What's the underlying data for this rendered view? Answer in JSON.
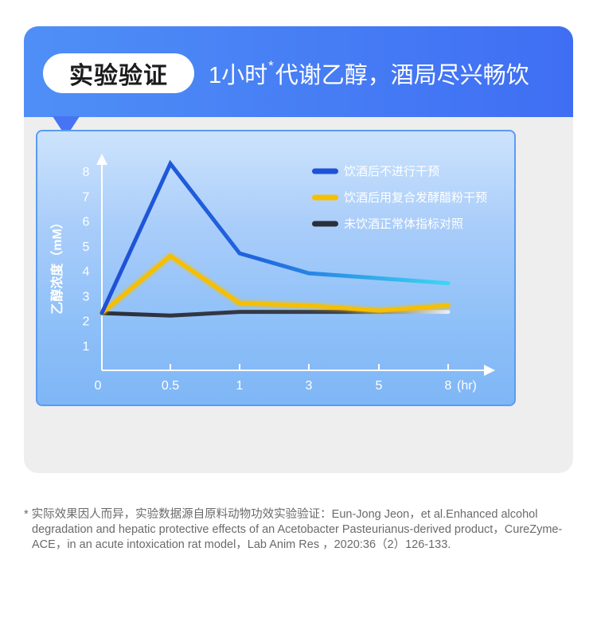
{
  "header": {
    "badge": "实验验证",
    "headline_lead": "1小时",
    "headline_mark": "*",
    "headline_rest": "代谢乙醇，酒局尽兴畅饮"
  },
  "colors": {
    "banner": "#4a7ff4",
    "series_1": "#1e52d8",
    "series_1_end": "#3bd1f0",
    "series_2": "#f6bf00",
    "series_3": "#2b2f3a"
  },
  "chart_data": {
    "type": "line",
    "title": "",
    "xlabel": "",
    "ylabel": "乙醇浓度（mM）",
    "x": [
      "0",
      "0.5",
      "1",
      "3",
      "5",
      "8"
    ],
    "x_unit": "(hr)",
    "yticks": [
      "1",
      "2",
      "3",
      "4",
      "5",
      "6",
      "7",
      "8"
    ],
    "ylim": [
      0,
      9
    ],
    "grid": false,
    "legend_position": "top-right",
    "series": [
      {
        "name": "饮酒后不进行干预",
        "values": [
          2.3,
          8.3,
          4.7,
          3.9,
          3.7,
          3.5
        ]
      },
      {
        "name": "饮酒后用复合发酵醋粉干预",
        "values": [
          2.3,
          4.6,
          2.7,
          2.6,
          2.4,
          2.6
        ]
      },
      {
        "name": "未饮酒正常体指标对照",
        "values": [
          2.3,
          2.2,
          2.35,
          2.35,
          2.35,
          2.35
        ]
      }
    ]
  },
  "footnote": "* 实际效果因人而异，实验数据源自原料动物功效实验验证：Eun-Jong Jeon，et al.Enhanced alcohol degradation and hepatic protective effects of an Acetobacter Pasteurianus-derived product，CureZyme-ACE，in an acute intoxication rat model，Lab Anim Res ，2020:36（2）126-133."
}
